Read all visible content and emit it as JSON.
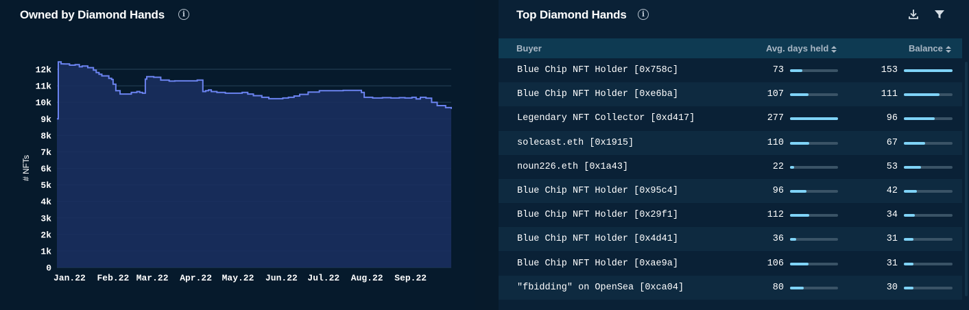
{
  "left_panel": {
    "title": "Owned by Diamond Hands",
    "info_icon": "info-icon"
  },
  "right_panel": {
    "title": "Top Diamond Hands",
    "info_icon": "info-icon",
    "tools": [
      "download-icon",
      "filter-icon"
    ],
    "columns": [
      "Buyer",
      "Avg. days held",
      "Balance"
    ],
    "max_days": 277,
    "max_balance": 153,
    "rows": [
      {
        "buyer": "Blue Chip NFT Holder [0x758c]",
        "days": "73",
        "balance": "153"
      },
      {
        "buyer": "Blue Chip NFT Holder [0xe6ba]",
        "days": "107",
        "balance": "111"
      },
      {
        "buyer": "Legendary NFT Collector [0xd417]",
        "days": "277",
        "balance": "96"
      },
      {
        "buyer": "solecast.eth [0x1915]",
        "days": "110",
        "balance": "67"
      },
      {
        "buyer": "noun226.eth [0x1a43]",
        "days": "22",
        "balance": "53"
      },
      {
        "buyer": "Blue Chip NFT Holder [0x95c4]",
        "days": "96",
        "balance": "42"
      },
      {
        "buyer": "Blue Chip NFT Holder [0x29f1]",
        "days": "112",
        "balance": "34"
      },
      {
        "buyer": "Blue Chip NFT Holder [0x4d41]",
        "days": "36",
        "balance": "31"
      },
      {
        "buyer": "Blue Chip NFT Holder [0xae9a]",
        "days": "106",
        "balance": "31"
      },
      {
        "buyer": "\"fbidding\" on OpenSea [0xca04]",
        "days": "80",
        "balance": "30"
      }
    ]
  },
  "colors": {
    "line": "#6b83f0",
    "area": "#1a2f5e",
    "bar_fill": "#7fd3f7",
    "bar_track": "#3a5366"
  },
  "chart_data": {
    "type": "area",
    "title": "Owned by Diamond Hands",
    "xlabel": "",
    "ylabel": "# NFTs",
    "ylim": [
      0,
      12000
    ],
    "yticks": [
      "0",
      "1k",
      "2k",
      "3k",
      "4k",
      "5k",
      "6k",
      "7k",
      "8k",
      "9k",
      "10k",
      "11k",
      "12k"
    ],
    "xticks": [
      "Jan.22",
      "Feb.22",
      "Mar.22",
      "Apr.22",
      "May.22",
      "Jun.22",
      "Jul.22",
      "Aug.22",
      "Sep.22"
    ],
    "grid": true,
    "xrange": [
      "2021-12-23",
      "2022-09-30"
    ],
    "series": [
      {
        "x": [
          "2021-12-23",
          "2021-12-24",
          "2021-12-26",
          "2021-12-28",
          "2022-01-01",
          "2022-01-05",
          "2022-01-08",
          "2022-01-10",
          "2022-01-14",
          "2022-01-18",
          "2022-01-20",
          "2022-01-22",
          "2022-01-24",
          "2022-01-26",
          "2022-01-29",
          "2022-01-31",
          "2022-02-01",
          "2022-02-03",
          "2022-02-06",
          "2022-02-10",
          "2022-02-14",
          "2022-02-18",
          "2022-02-20",
          "2022-02-22",
          "2022-02-24",
          "2022-02-25",
          "2022-02-27",
          "2022-03-02",
          "2022-03-07",
          "2022-03-13",
          "2022-03-17",
          "2022-03-22",
          "2022-03-28",
          "2022-04-02",
          "2022-04-06",
          "2022-04-08",
          "2022-04-10",
          "2022-04-12",
          "2022-04-16",
          "2022-04-22",
          "2022-04-29",
          "2022-05-04",
          "2022-05-08",
          "2022-05-12",
          "2022-05-18",
          "2022-05-23",
          "2022-05-29",
          "2022-06-02",
          "2022-06-06",
          "2022-06-10",
          "2022-06-14",
          "2022-06-20",
          "2022-06-28",
          "2022-07-02",
          "2022-07-08",
          "2022-07-15",
          "2022-07-21",
          "2022-07-27",
          "2022-07-28",
          "2022-07-30",
          "2022-08-05",
          "2022-08-12",
          "2022-08-18",
          "2022-08-24",
          "2022-08-28",
          "2022-09-02",
          "2022-09-05",
          "2022-09-08",
          "2022-09-12",
          "2022-09-16",
          "2022-09-20",
          "2022-09-26",
          "2022-09-30"
        ],
        "values": [
          9000,
          12450,
          12330,
          12320,
          12250,
          12280,
          12150,
          12200,
          12100,
          11950,
          11800,
          11700,
          11600,
          11600,
          11450,
          11380,
          11100,
          10700,
          10500,
          10500,
          10600,
          10650,
          10600,
          10550,
          11400,
          11550,
          11550,
          11520,
          11350,
          11280,
          11300,
          11300,
          11300,
          11350,
          10650,
          10700,
          10750,
          10650,
          10600,
          10550,
          10550,
          10600,
          10500,
          10400,
          10300,
          10220,
          10220,
          10260,
          10300,
          10380,
          10480,
          10620,
          10700,
          10700,
          10700,
          10720,
          10720,
          10720,
          10600,
          10300,
          10260,
          10280,
          10260,
          10280,
          10260,
          10300,
          10200,
          10300,
          10250,
          10000,
          9800,
          9680,
          9600
        ]
      }
    ]
  }
}
